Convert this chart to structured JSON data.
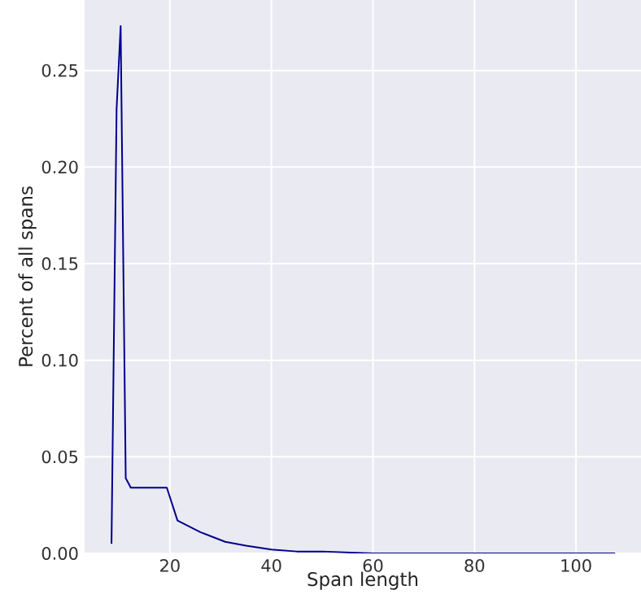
{
  "chart_data": {
    "type": "line",
    "xlabel": "Span length",
    "ylabel": "Percent of all spans",
    "x": [
      8.5,
      9.5,
      10.3,
      11.3,
      12.3,
      15,
      19.4,
      21.5,
      26,
      30.9,
      35,
      40,
      45,
      50,
      60,
      70,
      80,
      90,
      100,
      107.7
    ],
    "series": [
      {
        "color": "#00008b",
        "values": [
          0.005,
          0.23,
          0.273,
          0.039,
          0.034,
          0.034,
          0.034,
          0.017,
          0.011,
          0.006,
          0.004,
          0.002,
          0.001,
          0.001,
          0,
          0,
          0,
          0,
          0,
          0
        ]
      }
    ],
    "xlim": [
      3.2,
      112.8
    ],
    "ylim": [
      0,
      0.2865
    ],
    "xticks": [
      20,
      40,
      60,
      80,
      100
    ],
    "yticks": [
      {
        "value": 0,
        "label": "0.00"
      },
      {
        "value": 0.05,
        "label": "0.05"
      },
      {
        "value": 0.1,
        "label": "0.10"
      },
      {
        "value": 0.15,
        "label": "0.15"
      },
      {
        "value": 0.2,
        "label": "0.20"
      },
      {
        "value": 0.25,
        "label": "0.25"
      }
    ],
    "grid": true,
    "marker": "none",
    "line_style": "solid"
  }
}
